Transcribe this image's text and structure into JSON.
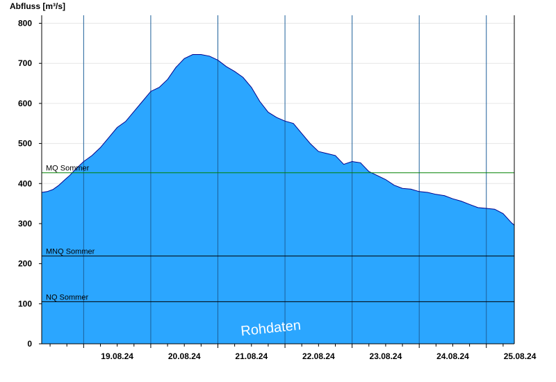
{
  "chart_data": {
    "type": "area",
    "ylabel": "Abfluss [m³/s]",
    "ylim": [
      0,
      820
    ],
    "yticks": [
      0,
      100,
      200,
      300,
      400,
      500,
      600,
      700,
      800
    ],
    "xlim": [
      "2024-08-18T09:00",
      "2024-08-25T10:00"
    ],
    "x_day_labels": [
      "19.08.24",
      "20.08.24",
      "21.08.24",
      "22.08.24",
      "23.08.24",
      "24.08.24",
      "25.08.24"
    ],
    "grid": {
      "x": "vertical day lines",
      "y": "light horizontal lines"
    },
    "fill_color": "#2ba6ff",
    "line_color": "#00008b",
    "series": [
      {
        "x": [
          "2024-08-18T09:00",
          "2024-08-18T11:00",
          "2024-08-18T13:00",
          "2024-08-18T15:00",
          "2024-08-18T17:00",
          "2024-08-18T19:00",
          "2024-08-18T21:00",
          "2024-08-19T00:00",
          "2024-08-19T03:00",
          "2024-08-19T06:00",
          "2024-08-19T09:00",
          "2024-08-19T12:00",
          "2024-08-19T15:00",
          "2024-08-19T18:00",
          "2024-08-19T21:00",
          "2024-08-20T00:00",
          "2024-08-20T03:00",
          "2024-08-20T06:00",
          "2024-08-20T09:00",
          "2024-08-20T12:00",
          "2024-08-20T15:00",
          "2024-08-20T18:00",
          "2024-08-20T21:00",
          "2024-08-21T00:00",
          "2024-08-21T03:00",
          "2024-08-21T06:00",
          "2024-08-21T09:00",
          "2024-08-21T12:00",
          "2024-08-21T15:00",
          "2024-08-21T18:00",
          "2024-08-21T21:00",
          "2024-08-22T00:00",
          "2024-08-22T03:00",
          "2024-08-22T06:00",
          "2024-08-22T09:00",
          "2024-08-22T12:00",
          "2024-08-22T15:00",
          "2024-08-22T18:00",
          "2024-08-22T21:00",
          "2024-08-23T00:00",
          "2024-08-23T03:00",
          "2024-08-23T06:00",
          "2024-08-23T09:00",
          "2024-08-23T12:00",
          "2024-08-23T15:00",
          "2024-08-23T18:00",
          "2024-08-23T21:00",
          "2024-08-24T00:00",
          "2024-08-24T03:00",
          "2024-08-24T06:00",
          "2024-08-24T09:00",
          "2024-08-24T12:00",
          "2024-08-24T15:00",
          "2024-08-24T18:00",
          "2024-08-24T21:00",
          "2024-08-25T00:00",
          "2024-08-25T03:00",
          "2024-08-25T06:00",
          "2024-08-25T09:00",
          "2024-08-25T10:00"
        ],
        "values": [
          378,
          380,
          385,
          395,
          408,
          420,
          435,
          455,
          470,
          490,
          515,
          540,
          555,
          580,
          605,
          630,
          640,
          660,
          690,
          712,
          722,
          722,
          718,
          708,
          692,
          680,
          665,
          640,
          605,
          578,
          565,
          556,
          550,
          525,
          500,
          480,
          475,
          470,
          448,
          455,
          452,
          430,
          420,
          410,
          396,
          388,
          386,
          380,
          378,
          373,
          370,
          362,
          356,
          348,
          340,
          338,
          336,
          325,
          302,
          296
        ]
      }
    ],
    "reference_lines": [
      {
        "label": "MQ Sommer",
        "value": 427,
        "color": "#008000"
      },
      {
        "label": "MNQ Sommer",
        "value": 219,
        "color": "#000000"
      },
      {
        "label": "NQ Sommer",
        "value": 105,
        "color": "#000000"
      }
    ],
    "watermark": "Rohdaten"
  }
}
